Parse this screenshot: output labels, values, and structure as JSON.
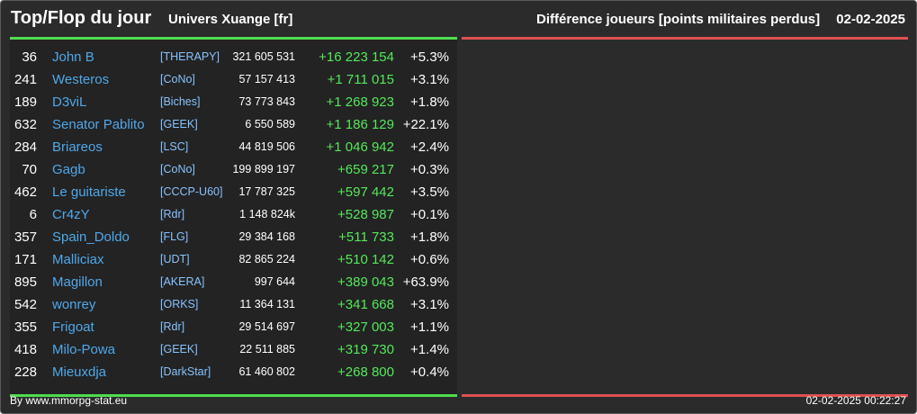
{
  "header": {
    "title": "Top/Flop du jour",
    "subtitle": "Univers Xuange [fr]",
    "metric": "Différence joueurs [points militaires perdus]",
    "date": "02-02-2025"
  },
  "colors": {
    "top_accent": "#4fdc4f",
    "flop_accent": "#e05050",
    "player_link": "#4fa8ea",
    "gain": "#54e85a"
  },
  "top_list": [
    {
      "rank": "36",
      "name": "John B",
      "alliance": "[THERAPY]",
      "points": "321 605 531",
      "diff": "+16 223 154",
      "pct": "+5.3%"
    },
    {
      "rank": "241",
      "name": "Westeros",
      "alliance": "[CoNo]",
      "points": "57 157 413",
      "diff": "+1 711 015",
      "pct": "+3.1%"
    },
    {
      "rank": "189",
      "name": "D3viL",
      "alliance": "[Biches]",
      "points": "73 773 843",
      "diff": "+1 268 923",
      "pct": "+1.8%"
    },
    {
      "rank": "632",
      "name": "Senator Pablito",
      "alliance": "[GEEK]",
      "points": "6 550 589",
      "diff": "+1 186 129",
      "pct": "+22.1%"
    },
    {
      "rank": "284",
      "name": "Briareos",
      "alliance": "[LSC]",
      "points": "44 819 506",
      "diff": "+1 046 942",
      "pct": "+2.4%"
    },
    {
      "rank": "70",
      "name": "Gagb",
      "alliance": "[CoNo]",
      "points": "199 899 197",
      "diff": "+659 217",
      "pct": "+0.3%"
    },
    {
      "rank": "462",
      "name": "Le guitariste",
      "alliance": "[CCCP-U60]",
      "points": "17 787 325",
      "diff": "+597 442",
      "pct": "+3.5%"
    },
    {
      "rank": "6",
      "name": "Cr4zY",
      "alliance": "[Rdr]",
      "points": "1 148 824k",
      "diff": "+528 987",
      "pct": "+0.1%"
    },
    {
      "rank": "357",
      "name": "Spain_Doldo",
      "alliance": "[FLG]",
      "points": "29 384 168",
      "diff": "+511 733",
      "pct": "+1.8%"
    },
    {
      "rank": "171",
      "name": "Malliciax",
      "alliance": "[UDT]",
      "points": "82 865 224",
      "diff": "+510 142",
      "pct": "+0.6%"
    },
    {
      "rank": "895",
      "name": "Magillon",
      "alliance": "[AKERA]",
      "points": "997 644",
      "diff": "+389 043",
      "pct": "+63.9%"
    },
    {
      "rank": "542",
      "name": "wonrey",
      "alliance": "[ORKS]",
      "points": "11 364 131",
      "diff": "+341 668",
      "pct": "+3.1%"
    },
    {
      "rank": "355",
      "name": "Frigoat",
      "alliance": "[Rdr]",
      "points": "29 514 697",
      "diff": "+327 003",
      "pct": "+1.1%"
    },
    {
      "rank": "418",
      "name": "Milo-Powa",
      "alliance": "[GEEK]",
      "points": "22 511 885",
      "diff": "+319 730",
      "pct": "+1.4%"
    },
    {
      "rank": "228",
      "name": "Mieuxdja",
      "alliance": "[DarkStar]",
      "points": "61 460 802",
      "diff": "+268 800",
      "pct": "+0.4%"
    }
  ],
  "footer": {
    "credit": "By www.mmorpg-stat.eu",
    "timestamp": "02-02-2025 00:22:27"
  }
}
